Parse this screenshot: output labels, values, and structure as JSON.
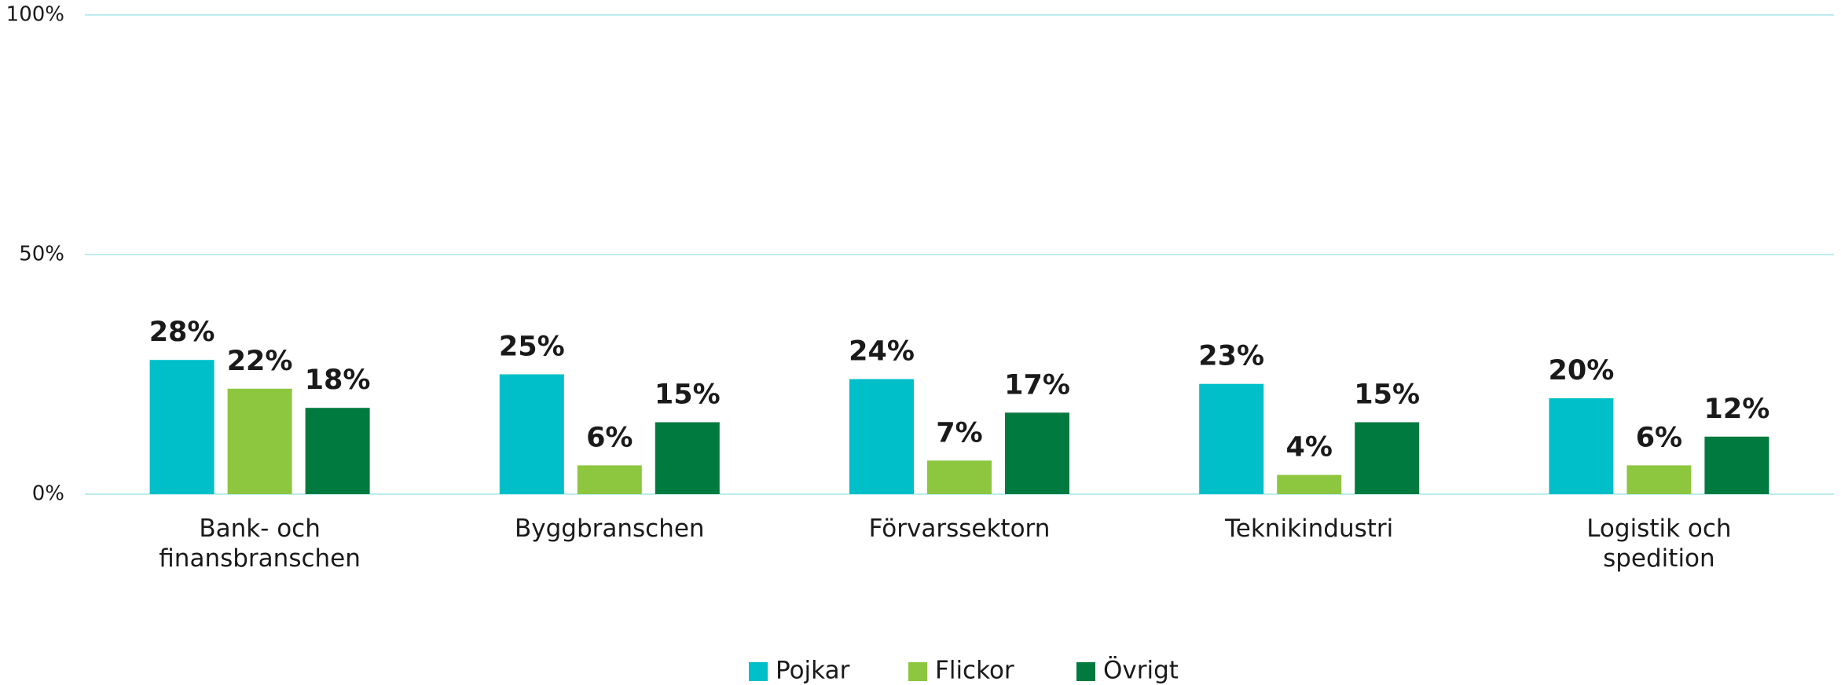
{
  "chart_data": {
    "type": "bar",
    "categories": [
      "Bank- och finansbranschen",
      "Byggbranschen",
      "Förvarssektorn",
      "Teknikindustri",
      "Logistik och spedition"
    ],
    "series": [
      {
        "name": "Pojkar",
        "color": "#00bfc8",
        "values": [
          28,
          25,
          24,
          23,
          20
        ],
        "value_labels": [
          "28%",
          "25%",
          "24%",
          "23%",
          "20%"
        ]
      },
      {
        "name": "Flickor",
        "color": "#8dc63f",
        "values": [
          22,
          6,
          7,
          4,
          6
        ],
        "value_labels": [
          "22%",
          "6%",
          "7%",
          "4%",
          "6%"
        ]
      },
      {
        "name": "Övrigt",
        "color": "#007a3e",
        "values": [
          18,
          15,
          17,
          15,
          12
        ],
        "value_labels": [
          "18%",
          "15%",
          "17%",
          "15%",
          "12%"
        ]
      }
    ],
    "ylim": [
      0,
      100
    ],
    "yticks": [
      {
        "value": 0,
        "label": "0%"
      },
      {
        "value": 50,
        "label": "50%"
      },
      {
        "value": 100,
        "label": "100%"
      }
    ],
    "grid": true
  }
}
